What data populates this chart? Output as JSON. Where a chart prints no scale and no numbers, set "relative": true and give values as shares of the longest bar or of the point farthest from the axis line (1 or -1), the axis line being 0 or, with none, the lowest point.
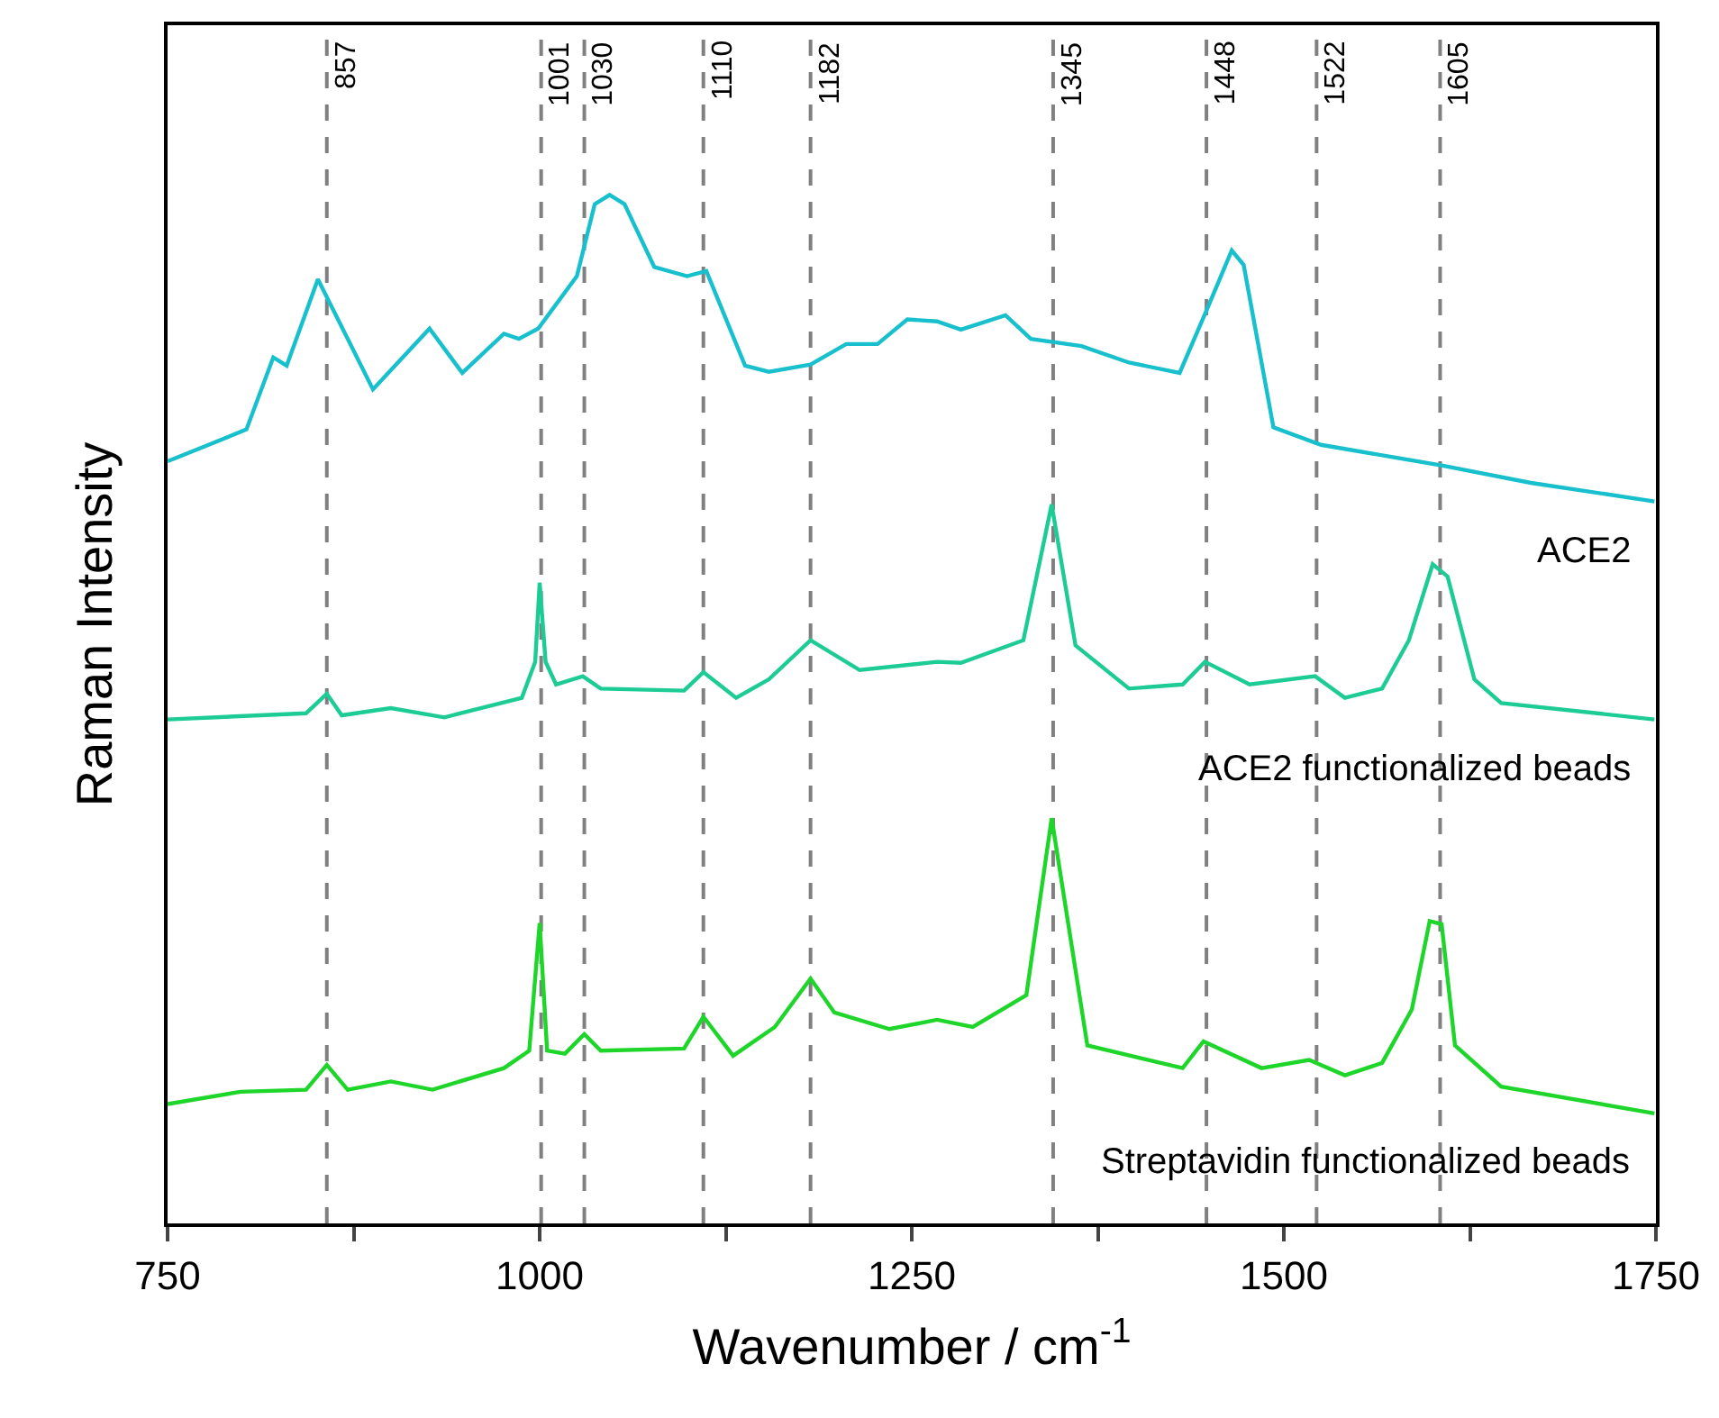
{
  "chart_data": {
    "type": "line",
    "relative": true,
    "xlabel": "Wavenumber / cm$^{-1}$",
    "ylabel": "Raman Intensity",
    "xlim": [
      750,
      1750
    ],
    "xticks": [
      750,
      {
        "value": 875,
        "label": null
      },
      1000,
      {
        "value": 1125,
        "label": null
      },
      1250,
      {
        "value": 1375,
        "label": null
      },
      1500,
      {
        "value": 1625,
        "label": null
      },
      1750
    ],
    "grid": false,
    "legend": false,
    "marker": "none",
    "line_style": "solid",
    "tick_labels": "x",
    "series": [
      {
        "name": "ACE2",
        "color": "#17c0cc",
        "x": [
          750,
          803,
          821,
          830,
          851,
          888,
          926,
          948,
          976,
          986,
          999,
          1025,
          1037,
          1047,
          1057,
          1077,
          1099,
          1112,
          1138,
          1154,
          1182,
          1206,
          1227,
          1247,
          1267,
          1283,
          1313,
          1330,
          1364,
          1396,
          1430,
          1449,
          1465,
          1473,
          1493,
          1525,
          1606,
          1666,
          1749
        ],
        "values": [
          0.741,
          0.772,
          0.842,
          0.834,
          0.918,
          0.811,
          0.87,
          0.827,
          0.865,
          0.86,
          0.87,
          0.921,
          0.991,
          1.0,
          0.991,
          0.93,
          0.921,
          0.926,
          0.834,
          0.828,
          0.835,
          0.855,
          0.855,
          0.879,
          0.877,
          0.869,
          0.883,
          0.86,
          0.853,
          0.837,
          0.827,
          0.891,
          0.946,
          0.932,
          0.774,
          0.757,
          0.737,
          0.72,
          0.702
        ]
      },
      {
        "name": "ACE2 functionalized beads",
        "color": "#1dcc95",
        "x": [
          750,
          843,
          857,
          867,
          900,
          936,
          988,
          997,
          1000,
          1004,
          1011,
          1029,
          1041,
          1097,
          1110,
          1132,
          1154,
          1182,
          1215,
          1267,
          1283,
          1325,
          1344,
          1360,
          1396,
          1432,
          1447,
          1477,
          1521,
          1541,
          1566,
          1584,
          1600,
          1610,
          1628,
          1646,
          1749
        ],
        "values": [
          0.49,
          0.496,
          0.515,
          0.494,
          0.501,
          0.492,
          0.511,
          0.546,
          0.623,
          0.546,
          0.524,
          0.532,
          0.52,
          0.518,
          0.536,
          0.511,
          0.529,
          0.567,
          0.538,
          0.546,
          0.545,
          0.567,
          0.699,
          0.562,
          0.52,
          0.524,
          0.546,
          0.524,
          0.532,
          0.511,
          0.52,
          0.567,
          0.641,
          0.629,
          0.529,
          0.506,
          0.49
        ]
      },
      {
        "name": "Streptavidin functionalized beads",
        "color": "#1ed62a",
        "x": [
          750,
          799,
          843,
          857,
          871,
          900,
          928,
          976,
          993,
          1000,
          1005,
          1017,
          1030,
          1041,
          1097,
          1110,
          1130,
          1158,
          1182,
          1198,
          1235,
          1267,
          1291,
          1327,
          1344,
          1368,
          1432,
          1446,
          1485,
          1517,
          1541,
          1566,
          1586,
          1598,
          1606,
          1615,
          1646,
          1749
        ],
        "values": [
          0.116,
          0.128,
          0.13,
          0.154,
          0.13,
          0.138,
          0.13,
          0.151,
          0.168,
          0.292,
          0.168,
          0.165,
          0.184,
          0.168,
          0.17,
          0.201,
          0.163,
          0.191,
          0.238,
          0.205,
          0.189,
          0.198,
          0.191,
          0.222,
          0.394,
          0.173,
          0.151,
          0.177,
          0.151,
          0.159,
          0.144,
          0.156,
          0.208,
          0.294,
          0.291,
          0.173,
          0.133,
          0.107
        ]
      }
    ],
    "ref_lines": [
      {
        "axis": "x",
        "value": 857,
        "label": "857",
        "color": "#808080",
        "line_style": "dashed"
      },
      {
        "axis": "x",
        "value": 1001,
        "label": "1001",
        "color": "#808080",
        "line_style": "dashed"
      },
      {
        "axis": "x",
        "value": 1030,
        "label": "1030",
        "color": "#808080",
        "line_style": "dashed"
      },
      {
        "axis": "x",
        "value": 1110,
        "label": "1110",
        "color": "#808080",
        "line_style": "dashed"
      },
      {
        "axis": "x",
        "value": 1182,
        "label": "1182",
        "color": "#808080",
        "line_style": "dashed"
      },
      {
        "axis": "x",
        "value": 1345,
        "label": "1345",
        "color": "#808080",
        "line_style": "dashed"
      },
      {
        "axis": "x",
        "value": 1448,
        "label": "1448",
        "color": "#808080",
        "line_style": "dashed"
      },
      {
        "axis": "x",
        "value": 1522,
        "label": "1522",
        "color": "#808080",
        "line_style": "dashed"
      },
      {
        "axis": "x",
        "value": 1605,
        "label": "1605",
        "color": "#808080",
        "line_style": "dashed"
      }
    ]
  }
}
